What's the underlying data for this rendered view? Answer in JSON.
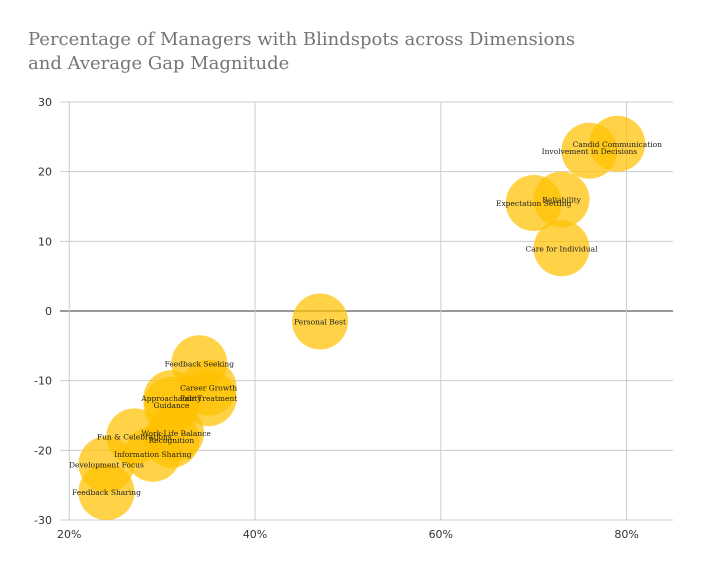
{
  "title_lines": [
    "Percentage of Managers with Blindspots across Dimensions",
    "and Average Gap Magnitude"
  ],
  "colors": {
    "bubble": "#FFC000",
    "grid": "#cccccc",
    "zero_line": "#333333"
  },
  "chart_data": {
    "type": "scatter",
    "title": "Percentage of Managers with Blindspots across Dimensions and Average Gap Magnitude",
    "xlabel": "",
    "ylabel": "",
    "xlim": [
      0.19,
      0.85
    ],
    "ylim": [
      -30,
      30
    ],
    "x_ticks": [
      0.2,
      0.4,
      0.6,
      0.8
    ],
    "x_tick_labels": [
      "20%",
      "40%",
      "60%",
      "80%"
    ],
    "y_ticks": [
      30,
      20,
      10,
      0,
      -10,
      -20,
      -30
    ],
    "y_tick_labels": [
      "30",
      "20",
      "10",
      "0",
      "-10",
      "-20",
      "-30"
    ],
    "grid": true,
    "bubble_size_uniform": true,
    "points": [
      {
        "label": "Candid Communication",
        "x": 0.79,
        "y": 24
      },
      {
        "label": "Involvement in Decisions",
        "x": 0.76,
        "y": 23
      },
      {
        "label": "Reliability",
        "x": 0.73,
        "y": 16
      },
      {
        "label": "Expectation Setting",
        "x": 0.7,
        "y": 15.5
      },
      {
        "label": "Care for Individual",
        "x": 0.73,
        "y": 9
      },
      {
        "label": "Personal Best",
        "x": 0.47,
        "y": -1.5
      },
      {
        "label": "Feedback Seeking",
        "x": 0.34,
        "y": -7.5
      },
      {
        "label": "Career Growth",
        "x": 0.35,
        "y": -11
      },
      {
        "label": "Fair Treatment",
        "x": 0.35,
        "y": -12.5
      },
      {
        "label": "Approachability",
        "x": 0.31,
        "y": -12.5
      },
      {
        "label": "Guidance",
        "x": 0.31,
        "y": -13.5
      },
      {
        "label": "Work-Life Balance",
        "x": 0.315,
        "y": -17.5
      },
      {
        "label": "Recognition",
        "x": 0.31,
        "y": -18.5
      },
      {
        "label": "Fun & Celebrations",
        "x": 0.27,
        "y": -18
      },
      {
        "label": "Information Sharing",
        "x": 0.29,
        "y": -20.5
      },
      {
        "label": "Development Focus",
        "x": 0.24,
        "y": -22
      },
      {
        "label": "Feedback Sharing",
        "x": 0.24,
        "y": -26
      }
    ]
  }
}
